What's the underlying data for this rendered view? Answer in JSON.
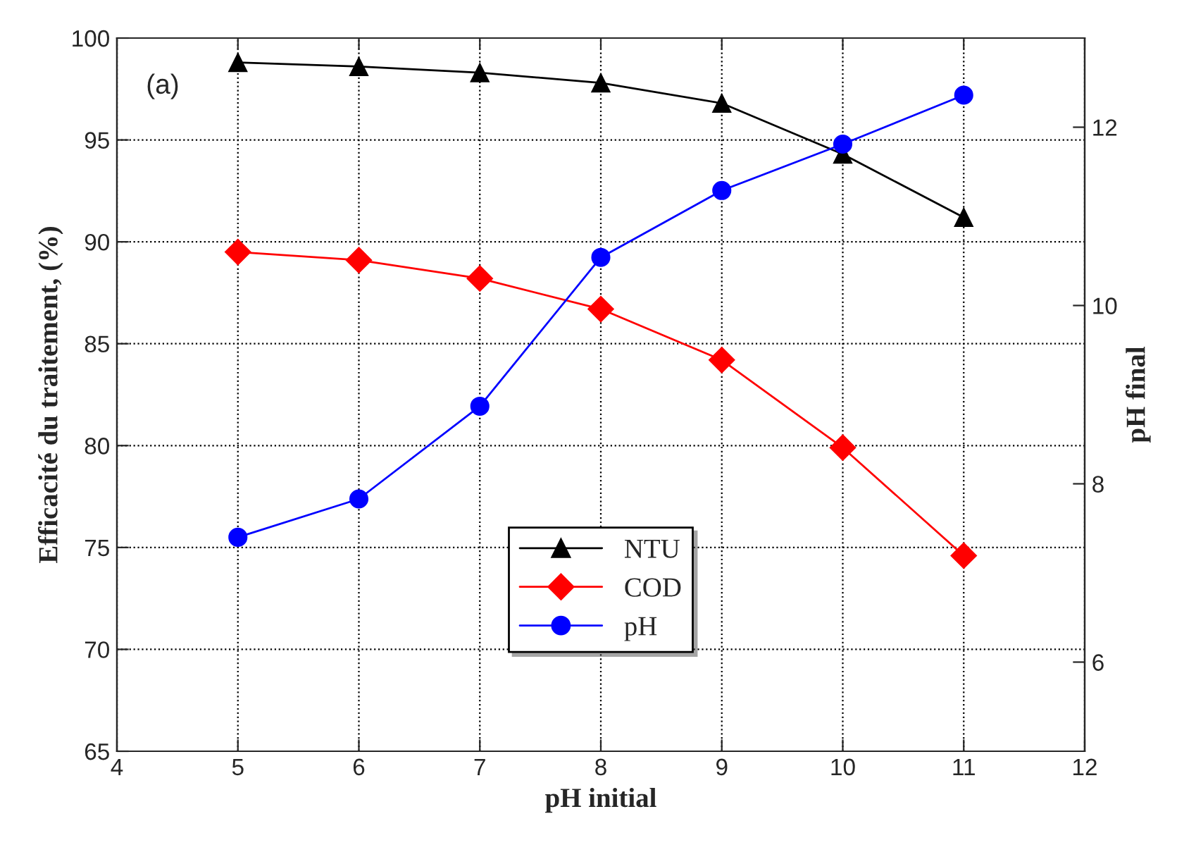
{
  "chart_data": {
    "type": "line",
    "xlabel": "pH initial",
    "ylabel": "Efficacité du traitement, (%)",
    "y2label": "pH final",
    "x": [
      5,
      6,
      7,
      8,
      9,
      10,
      11
    ],
    "series": [
      {
        "name": "NTU",
        "color": "#000000",
        "marker": "triangle",
        "values": [
          98.8,
          98.6,
          98.3,
          97.8,
          96.8,
          94.3,
          91.2
        ]
      },
      {
        "name": "COD",
        "color": "#ff0000",
        "marker": "diamond",
        "values": [
          89.5,
          89.1,
          88.2,
          86.7,
          84.2,
          79.9,
          74.6
        ]
      },
      {
        "name": "pH",
        "color": "#0000ff",
        "marker": "circle",
        "axis": "y2",
        "values": [
          7.4,
          7.83,
          8.87,
          10.54,
          11.29,
          11.81,
          12.36
        ]
      }
    ],
    "xlim": [
      4,
      12
    ],
    "xticks": [
      4,
      5,
      6,
      7,
      8,
      9,
      10,
      11,
      12
    ],
    "ylim": [
      65,
      100
    ],
    "yticks": [
      65,
      70,
      75,
      80,
      85,
      90,
      95,
      100
    ],
    "y2lim": [
      5,
      13
    ],
    "y2ticks": [
      6,
      8,
      10,
      12
    ],
    "annotations": [
      "(a)"
    ],
    "grid": true,
    "legend": "bottom",
    "line_style": "solid"
  }
}
